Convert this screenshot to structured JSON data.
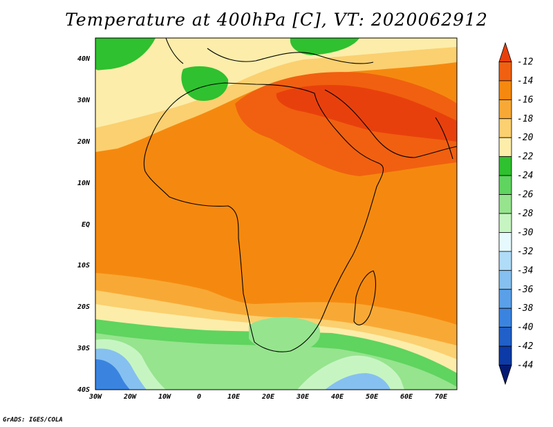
{
  "title": "Temperature at 400hPa [C], VT: 2020062912",
  "credit": "GrADS: IGES/COLA",
  "map": {
    "lon_range": [
      -30,
      75
    ],
    "lat_range": [
      -40,
      45
    ],
    "lat_ticks": [
      "40N",
      "30N",
      "20N",
      "10N",
      "EQ",
      "10S",
      "20S",
      "30S",
      "40S"
    ],
    "lon_ticks": [
      "30W",
      "20W",
      "10W",
      "0",
      "10E",
      "20E",
      "30E",
      "40E",
      "50E",
      "60E",
      "70E"
    ]
  },
  "colorbar": {
    "labels": [
      "-12",
      "-14",
      "-16",
      "-18",
      "-20",
      "-22",
      "-24",
      "-26",
      "-28",
      "-30",
      "-32",
      "-34",
      "-36",
      "-38",
      "-40",
      "-42",
      "-44"
    ],
    "colors": [
      "#e8400c",
      "#f06010",
      "#f5890f",
      "#f8a935",
      "#fbd070",
      "#fcedaa",
      "#2fc12f",
      "#5fd45f",
      "#96e48e",
      "#c6f5c2",
      "#e6fafe",
      "#b0dcf7",
      "#86c0f0",
      "#5aa0e8",
      "#3a84e0",
      "#2060c8",
      "#0c3aa6",
      "#051a72"
    ]
  }
}
